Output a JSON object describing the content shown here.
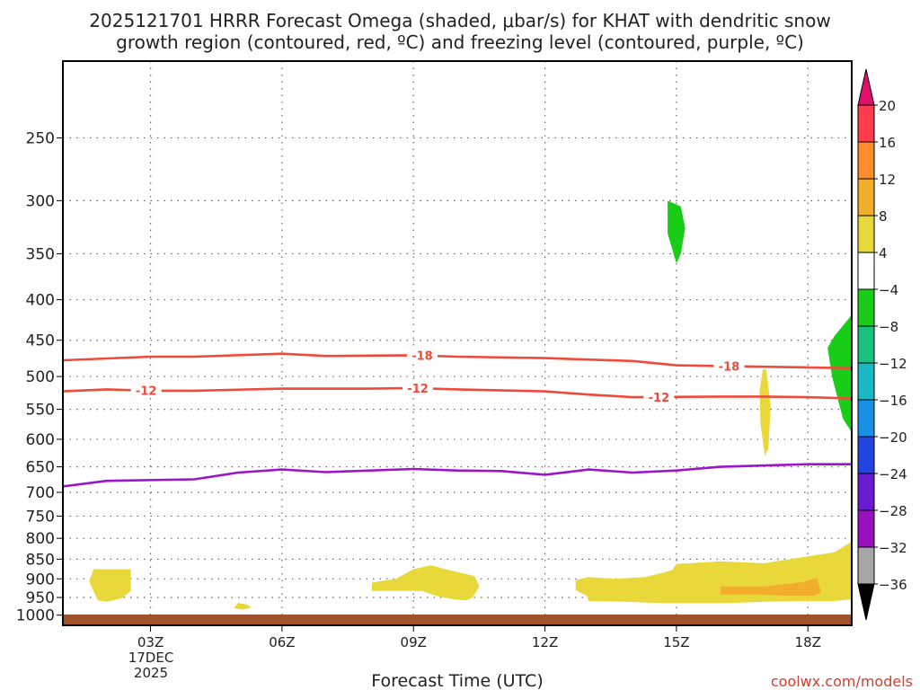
{
  "chart_data": {
    "type": "heatmap",
    "title_line1": "2025121701 HRRR Forecast Omega (shaded, μbar/s) for KHAT with dendritic snow",
    "title_line2": "growth region (contoured, red, ºC) and freezing level (contoured, purple, ºC)",
    "xlabel": "Forecast Time (UTC)",
    "watermark": "coolwx.com/models",
    "date_label": [
      "17DEC",
      "2025"
    ],
    "xlim_hours": [
      1,
      19
    ],
    "x_ticks": [
      {
        "h": 3,
        "label": "03Z"
      },
      {
        "h": 6,
        "label": "06Z"
      },
      {
        "h": 9,
        "label": "09Z"
      },
      {
        "h": 12,
        "label": "12Z"
      },
      {
        "h": 15,
        "label": "15Z"
      },
      {
        "h": 18,
        "label": "18Z"
      }
    ],
    "ylim_hpa": [
      1030,
      200
    ],
    "y_ticks": [
      250,
      300,
      350,
      400,
      450,
      500,
      550,
      600,
      650,
      700,
      750,
      800,
      850,
      900,
      950,
      1000
    ],
    "colorbar": {
      "levels": [
        "20",
        "16",
        "12",
        "8",
        "4",
        "−4",
        "−8",
        "−12",
        "−16",
        "−20",
        "−24",
        "−28",
        "−32",
        "−36"
      ],
      "colors": [
        "#ff3b4d",
        "#ff8c2a",
        "#f2ad2c",
        "#e8d83a",
        "#ffffff",
        "#18cc18",
        "#18c27e",
        "#18b8c4",
        "#1890e8",
        "#2244e0",
        "#6a1ad0",
        "#9a10c0",
        "#a6a6a6"
      ],
      "top_arrow": "#e0106a",
      "bottom_arrow": "#000000"
    },
    "colors": {
      "dgz": "#f04a3a",
      "freezing": "#9a16c8",
      "ground": "#a0522d"
    },
    "contours": [
      {
        "label": "-18",
        "color": "dgz",
        "label_at": [
          9.2,
          16.2
        ],
        "points": [
          [
            1,
            477
          ],
          [
            3,
            472
          ],
          [
            4,
            472
          ],
          [
            6,
            468
          ],
          [
            7,
            471
          ],
          [
            9,
            470
          ],
          [
            10,
            472
          ],
          [
            12,
            474
          ],
          [
            14,
            478
          ],
          [
            15,
            484
          ],
          [
            16,
            485
          ],
          [
            19,
            488
          ]
        ]
      },
      {
        "label": "-12",
        "color": "dgz",
        "label_at": [
          2.9,
          9.1,
          14.6
        ],
        "points": [
          [
            1,
            522
          ],
          [
            2,
            519
          ],
          [
            3,
            521
          ],
          [
            4,
            521
          ],
          [
            6,
            518
          ],
          [
            8,
            518
          ],
          [
            9,
            517
          ],
          [
            10,
            519
          ],
          [
            12,
            522
          ],
          [
            13,
            527
          ],
          [
            14,
            531
          ],
          [
            16,
            530
          ],
          [
            17,
            530
          ],
          [
            18,
            531
          ],
          [
            19,
            533
          ]
        ]
      },
      {
        "color": "freezing",
        "points": [
          [
            1,
            688
          ],
          [
            2,
            677
          ],
          [
            4,
            674
          ],
          [
            5,
            661
          ],
          [
            6,
            655
          ],
          [
            7,
            660
          ],
          [
            9,
            654
          ],
          [
            10,
            657
          ],
          [
            11,
            658
          ],
          [
            12,
            665
          ],
          [
            13,
            655
          ],
          [
            14,
            661
          ],
          [
            15,
            657
          ],
          [
            16,
            650
          ],
          [
            18,
            645
          ],
          [
            19,
            645
          ]
        ]
      }
    ],
    "regions": [
      {
        "color_index": 5,
        "points": [
          [
            14.8,
            300
          ],
          [
            15.1,
            305
          ],
          [
            15.2,
            325
          ],
          [
            15.1,
            350
          ],
          [
            15.0,
            360
          ],
          [
            14.8,
            330
          ],
          [
            14.8,
            305
          ]
        ]
      },
      {
        "color_index": 5,
        "points": [
          [
            19,
            418
          ],
          [
            18.6,
            445
          ],
          [
            18.45,
            460
          ],
          [
            18.55,
            500
          ],
          [
            18.8,
            565
          ],
          [
            19,
            588
          ]
        ]
      },
      {
        "color_index": 3,
        "points": [
          [
            16.97,
            490
          ],
          [
            17.05,
            490
          ],
          [
            17.15,
            545
          ],
          [
            17.1,
            615
          ],
          [
            17.02,
            630
          ],
          [
            16.92,
            575
          ],
          [
            16.9,
            520
          ]
        ]
      },
      {
        "color_index": 3,
        "points": [
          [
            1.7,
            875
          ],
          [
            1.6,
            908
          ],
          [
            1.8,
            958
          ],
          [
            2.0,
            962
          ],
          [
            2.35,
            952
          ],
          [
            2.55,
            932
          ],
          [
            2.55,
            875
          ]
        ]
      },
      {
        "color_index": 3,
        "points": [
          [
            5.0,
            965
          ],
          [
            5.2,
            970
          ],
          [
            5.3,
            978
          ],
          [
            5.1,
            984
          ],
          [
            4.9,
            980
          ]
        ]
      },
      {
        "color_index": 3,
        "points": [
          [
            8.05,
            910
          ],
          [
            8.6,
            900
          ],
          [
            9.0,
            875
          ],
          [
            9.4,
            865
          ],
          [
            9.8,
            877
          ],
          [
            10.4,
            893
          ],
          [
            10.5,
            920
          ],
          [
            10.35,
            950
          ],
          [
            10.2,
            958
          ],
          [
            9.9,
            955
          ],
          [
            9.5,
            945
          ],
          [
            9.2,
            932
          ],
          [
            8.05,
            932
          ]
        ]
      },
      {
        "color_index": 3,
        "points": [
          [
            12.7,
            903
          ],
          [
            13.0,
            895
          ],
          [
            13.6,
            900
          ],
          [
            14.3,
            895
          ],
          [
            14.9,
            878
          ],
          [
            15.0,
            862
          ],
          [
            16.0,
            855
          ],
          [
            17.0,
            860
          ],
          [
            18.0,
            843
          ],
          [
            18.6,
            833
          ],
          [
            19,
            808
          ],
          [
            19,
            955
          ],
          [
            18.6,
            960
          ],
          [
            17.8,
            960
          ],
          [
            17.0,
            962
          ],
          [
            16.2,
            966
          ],
          [
            14.7,
            966
          ],
          [
            13.8,
            962
          ],
          [
            13.0,
            960
          ],
          [
            12.95,
            945
          ],
          [
            12.7,
            930
          ]
        ]
      },
      {
        "color_index": 2,
        "points": [
          [
            16.0,
            920
          ],
          [
            17.0,
            920
          ],
          [
            17.9,
            908
          ],
          [
            18.2,
            898
          ],
          [
            18.3,
            935
          ],
          [
            18.15,
            945
          ],
          [
            17.5,
            945
          ],
          [
            16.9,
            942
          ],
          [
            16.0,
            942
          ]
        ]
      }
    ]
  }
}
